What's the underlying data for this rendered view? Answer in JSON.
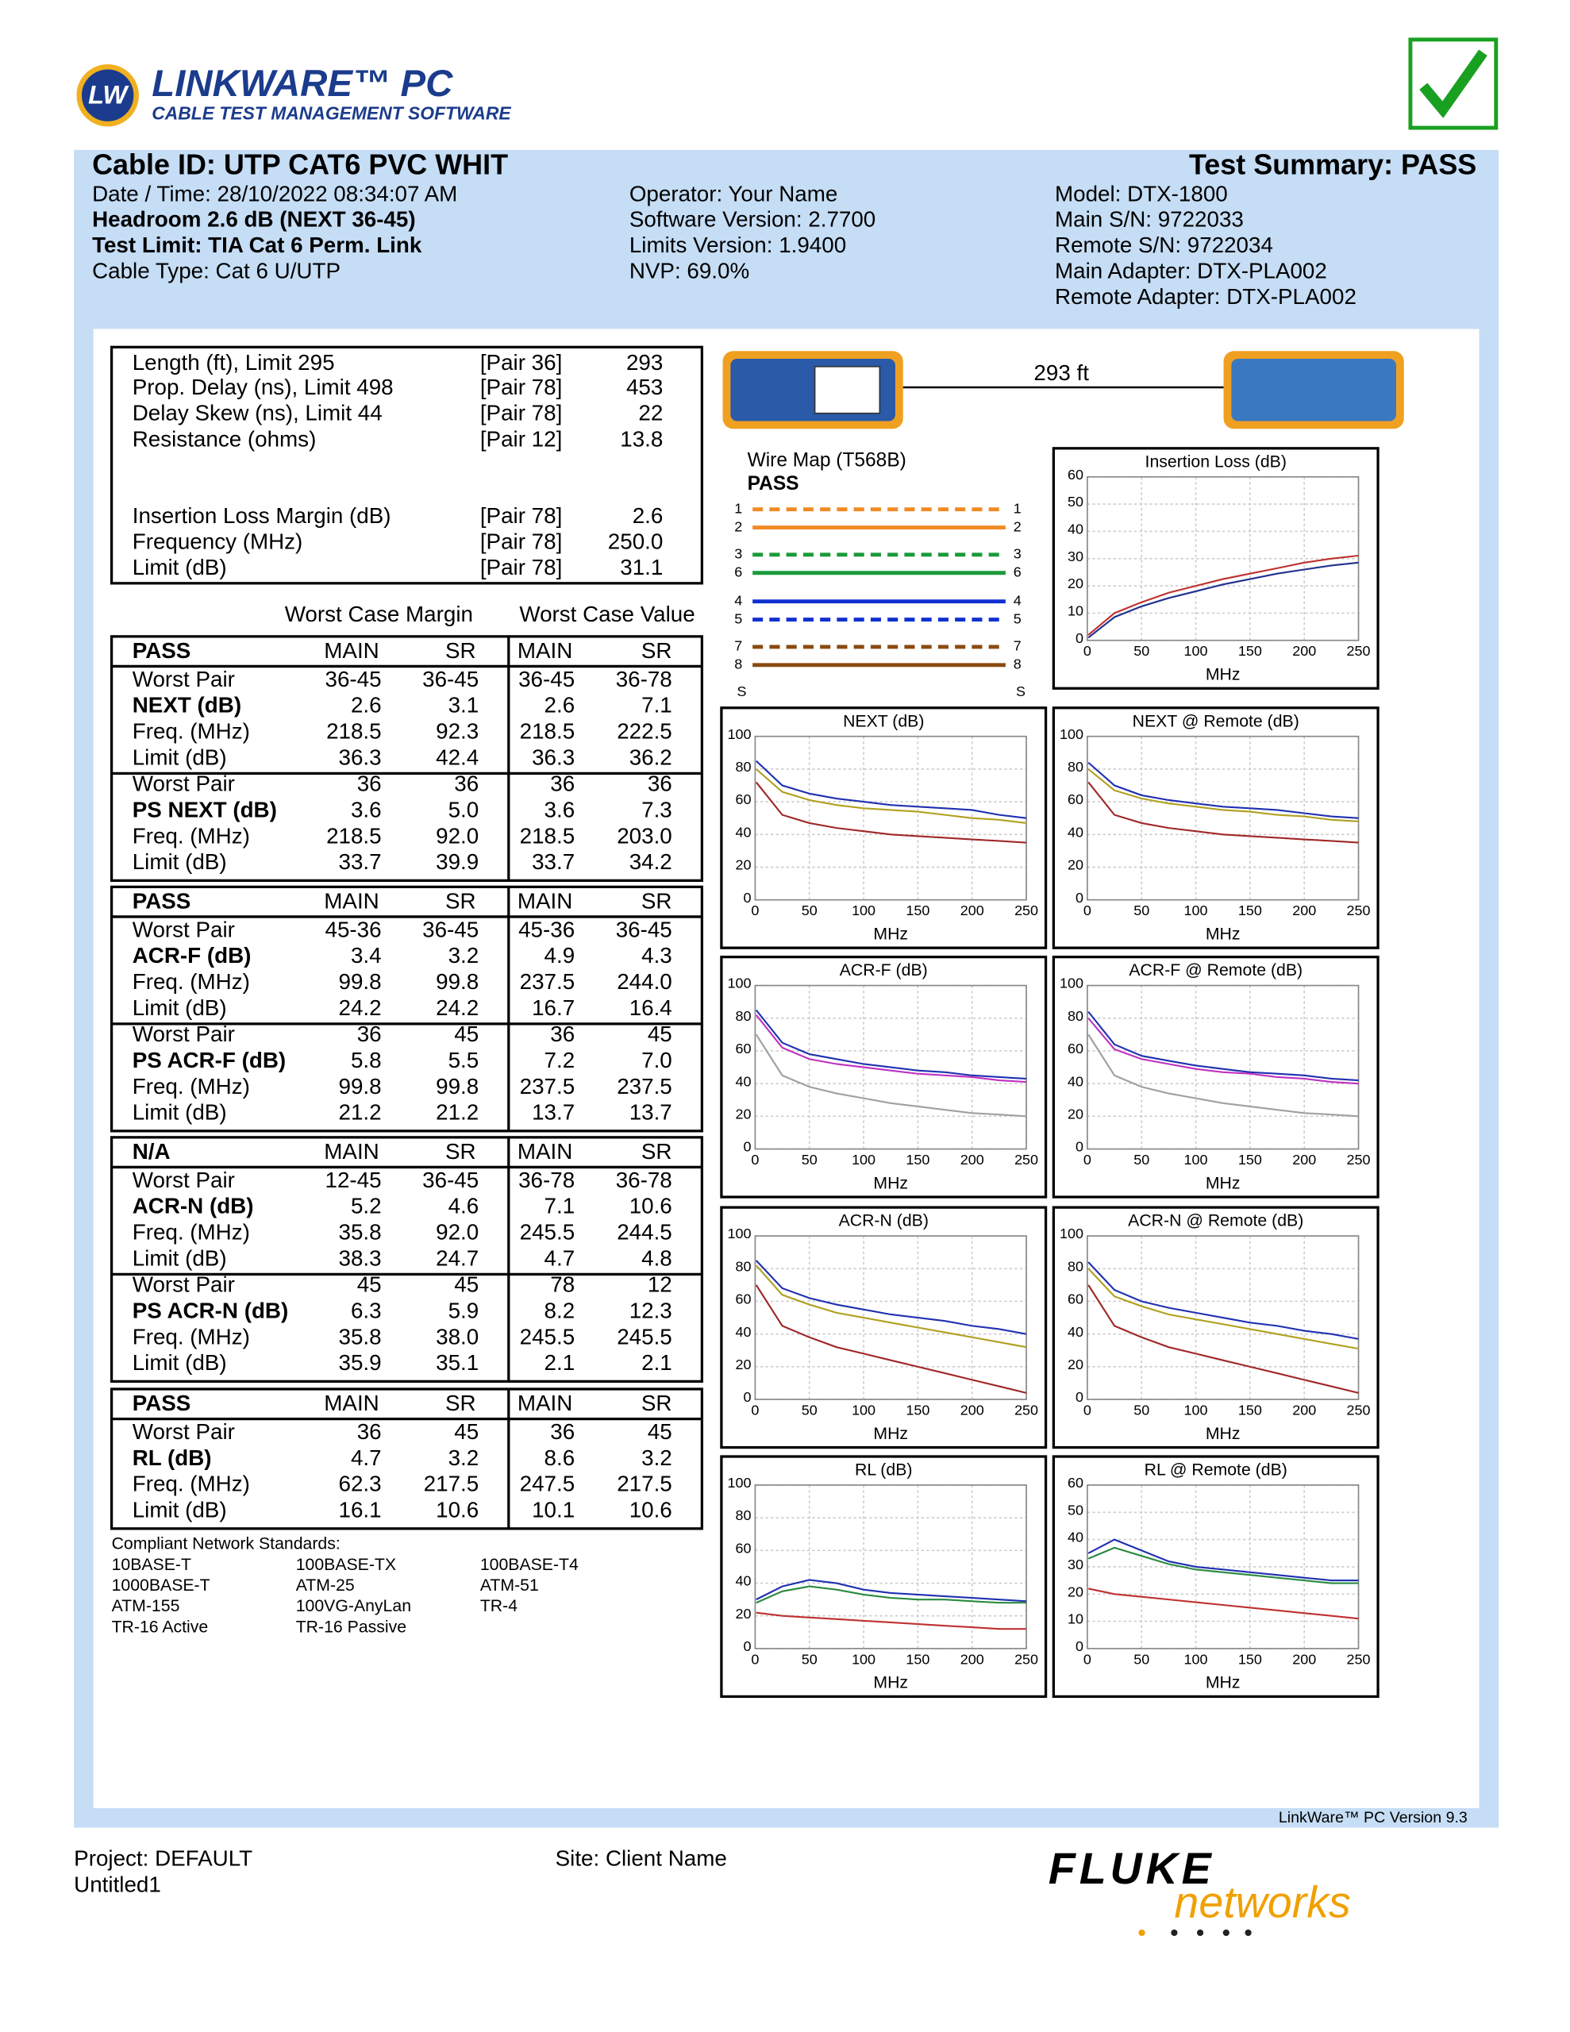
{
  "header": {
    "logo": "LW",
    "product": "LINKWARE™ PC",
    "tagline": "CABLE TEST MANAGEMENT SOFTWARE"
  },
  "summary": {
    "cable_id": "Cable ID: UTP CAT6  PVC  WHIT",
    "result": "Test Summary: PASS",
    "col1": [
      "Date / Time: 28/10/2022  08:34:07 AM",
      "Headroom 2.6 dB (NEXT 36-45)",
      "Test Limit: TIA Cat 6 Perm. Link",
      "Cable Type: Cat 6 U/UTP"
    ],
    "col2": [
      "Operator: Your Name",
      "Software Version: 2.7700",
      "Limits Version: 1.9400",
      "NVP: 69.0%"
    ],
    "col3": [
      "Model: DTX-1800",
      "Main S/N: 9722033",
      "Remote S/N: 9722034",
      "Main Adapter: DTX-PLA002",
      "Remote Adapter: DTX-PLA002"
    ]
  },
  "results": [
    [
      "Length (ft), Limit 295",
      "[Pair 36]",
      "293"
    ],
    [
      "Prop. Delay (ns), Limit 498",
      "[Pair 78]",
      "453"
    ],
    [
      "Delay Skew (ns), Limit 44",
      "[Pair 78]",
      "22"
    ],
    [
      "Resistance (ohms)",
      "[Pair 12]",
      "13.8"
    ],
    [
      "Insertion Loss Margin (dB)",
      "[Pair 78]",
      "2.6"
    ],
    [
      "Frequency (MHz)",
      "[Pair 78]",
      "250.0"
    ],
    [
      "Limit (dB)",
      "[Pair 78]",
      "31.1"
    ]
  ],
  "length_label": "293 ft",
  "wiremap": {
    "title": "Wire Map (T568B)",
    "result": "PASS",
    "shield": "S",
    "pins": [
      {
        "label": "1",
        "color": "#f08a24",
        "style": "dashed"
      },
      {
        "label": "2",
        "color": "#f08a24",
        "style": "solid"
      },
      {
        "label": "3",
        "color": "#1a9a3a",
        "style": "dashed"
      },
      {
        "label": "6",
        "color": "#1a9a3a",
        "style": "solid"
      },
      {
        "label": "4",
        "color": "#1030d0",
        "style": "solid"
      },
      {
        "label": "5",
        "color": "#1030d0",
        "style": "dashed"
      },
      {
        "label": "7",
        "color": "#8a4a10",
        "style": "dashed"
      },
      {
        "label": "8",
        "color": "#8a4a10",
        "style": "solid"
      }
    ]
  },
  "table_headings": [
    "Worst Case Margin",
    "Worst Case Value"
  ],
  "tables": [
    {
      "header": [
        "PASS",
        "MAIN",
        "SR",
        "MAIN",
        "SR"
      ],
      "rows": [
        [
          "Worst Pair",
          "36-45",
          "36-45",
          "36-45",
          "36-78"
        ],
        [
          "NEXT (dB)",
          "2.6",
          "3.1",
          "2.6",
          "7.1"
        ],
        [
          "Freq. (MHz)",
          "218.5",
          "92.3",
          "218.5",
          "222.5"
        ],
        [
          "Limit (dB)",
          "36.3",
          "42.4",
          "36.3",
          "36.2"
        ],
        [
          "Worst Pair",
          "36",
          "36",
          "36",
          "36"
        ],
        [
          "PS NEXT (dB)",
          "3.6",
          "5.0",
          "3.6",
          "7.3"
        ],
        [
          "Freq. (MHz)",
          "218.5",
          "92.0",
          "218.5",
          "203.0"
        ],
        [
          "Limit (dB)",
          "33.7",
          "39.9",
          "33.7",
          "34.2"
        ]
      ]
    },
    {
      "header": [
        "PASS",
        "MAIN",
        "SR",
        "MAIN",
        "SR"
      ],
      "rows": [
        [
          "Worst Pair",
          "45-36",
          "36-45",
          "45-36",
          "36-45"
        ],
        [
          "ACR-F (dB)",
          "3.4",
          "3.2",
          "4.9",
          "4.3"
        ],
        [
          "Freq. (MHz)",
          "99.8",
          "99.8",
          "237.5",
          "244.0"
        ],
        [
          "Limit (dB)",
          "24.2",
          "24.2",
          "16.7",
          "16.4"
        ],
        [
          "Worst Pair",
          "36",
          "45",
          "36",
          "45"
        ],
        [
          "PS ACR-F (dB)",
          "5.8",
          "5.5",
          "7.2",
          "7.0"
        ],
        [
          "Freq. (MHz)",
          "99.8",
          "99.8",
          "237.5",
          "237.5"
        ],
        [
          "Limit (dB)",
          "21.2",
          "21.2",
          "13.7",
          "13.7"
        ]
      ]
    },
    {
      "header": [
        "N/A",
        "MAIN",
        "SR",
        "MAIN",
        "SR"
      ],
      "rows": [
        [
          "Worst Pair",
          "12-45",
          "36-45",
          "36-78",
          "36-78"
        ],
        [
          "ACR-N (dB)",
          "5.2",
          "4.6",
          "7.1",
          "10.6"
        ],
        [
          "Freq. (MHz)",
          "35.8",
          "92.0",
          "245.5",
          "244.5"
        ],
        [
          "Limit (dB)",
          "38.3",
          "24.7",
          "4.7",
          "4.8"
        ],
        [
          "Worst Pair",
          "45",
          "45",
          "78",
          "12"
        ],
        [
          "PS ACR-N (dB)",
          "6.3",
          "5.9",
          "8.2",
          "12.3"
        ],
        [
          "Freq. (MHz)",
          "35.8",
          "38.0",
          "245.5",
          "245.5"
        ],
        [
          "Limit (dB)",
          "35.9",
          "35.1",
          "2.1",
          "2.1"
        ]
      ]
    },
    {
      "header": [
        "PASS",
        "MAIN",
        "SR",
        "MAIN",
        "SR"
      ],
      "rows": [
        [
          "Worst Pair",
          "36",
          "45",
          "36",
          "45"
        ],
        [
          "RL (dB)",
          "4.7",
          "3.2",
          "8.6",
          "3.2"
        ],
        [
          "Freq. (MHz)",
          "62.3",
          "217.5",
          "247.5",
          "217.5"
        ],
        [
          "Limit (dB)",
          "16.1",
          "10.6",
          "10.1",
          "10.6"
        ]
      ]
    }
  ],
  "standards": {
    "title": "Compliant Network Standards:",
    "items": [
      "10BASE-T",
      "100BASE-TX",
      "100BASE-T4",
      "1000BASE-T",
      "ATM-25",
      "ATM-51",
      "ATM-155",
      "100VG-AnyLan",
      "TR-4",
      "TR-16 Active",
      "TR-16 Passive"
    ]
  },
  "chart_data": [
    {
      "type": "line",
      "title": "Insertion Loss (dB)",
      "xlabel": "MHz",
      "x": [
        1,
        25,
        50,
        75,
        100,
        125,
        150,
        175,
        200,
        225,
        250
      ],
      "xlim": [
        0,
        250
      ],
      "xticks": [
        0,
        50,
        100,
        150,
        200,
        250
      ],
      "ylim": [
        0,
        60
      ],
      "yticks": [
        0,
        10,
        20,
        30,
        40,
        50,
        60
      ],
      "grid": true,
      "series": [
        {
          "color": "#c03030",
          "values": [
            2,
            10,
            14,
            17.5,
            20,
            22.5,
            24.5,
            26.5,
            28.5,
            30,
            31.1
          ]
        },
        {
          "color": "#203090",
          "values": [
            1,
            8.5,
            12.5,
            15.5,
            18,
            20.5,
            22.5,
            24.5,
            26,
            27.5,
            28.5
          ]
        }
      ]
    },
    {
      "type": "line",
      "title": "NEXT (dB)",
      "xlabel": "MHz",
      "x": [
        1,
        25,
        50,
        75,
        100,
        125,
        150,
        175,
        200,
        225,
        250
      ],
      "xlim": [
        0,
        250
      ],
      "xticks": [
        0,
        50,
        100,
        150,
        200,
        250
      ],
      "ylim": [
        0,
        100
      ],
      "yticks": [
        0,
        20,
        40,
        60,
        80,
        100
      ],
      "grid": true,
      "series": [
        {
          "color": "#a02828",
          "values": [
            72,
            52,
            47,
            44,
            42,
            40,
            39,
            38,
            37,
            36,
            35
          ]
        },
        {
          "color": "#2030b0",
          "values": [
            85,
            70,
            65,
            62,
            60,
            58,
            57,
            56,
            55,
            52,
            50
          ]
        },
        {
          "color": "#b0a020",
          "values": [
            80,
            66,
            61,
            58,
            56,
            55,
            54,
            52,
            50,
            49,
            47
          ]
        }
      ]
    },
    {
      "type": "line",
      "title": "NEXT @ Remote (dB)",
      "xlabel": "MHz",
      "x": [
        1,
        25,
        50,
        75,
        100,
        125,
        150,
        175,
        200,
        225,
        250
      ],
      "xlim": [
        0,
        250
      ],
      "xticks": [
        0,
        50,
        100,
        150,
        200,
        250
      ],
      "ylim": [
        0,
        100
      ],
      "yticks": [
        0,
        20,
        40,
        60,
        80,
        100
      ],
      "grid": true,
      "series": [
        {
          "color": "#a02828",
          "values": [
            72,
            52,
            47,
            44,
            42,
            40,
            39,
            38,
            37,
            36,
            35
          ]
        },
        {
          "color": "#2030b0",
          "values": [
            84,
            70,
            64,
            61,
            59,
            57,
            56,
            55,
            53,
            51,
            50
          ]
        },
        {
          "color": "#b0a020",
          "values": [
            80,
            67,
            62,
            59,
            57,
            55,
            54,
            52,
            51,
            49,
            48
          ]
        }
      ]
    },
    {
      "type": "line",
      "title": "ACR-F (dB)",
      "xlabel": "MHz",
      "x": [
        1,
        25,
        50,
        75,
        100,
        125,
        150,
        175,
        200,
        225,
        250
      ],
      "xlim": [
        0,
        250
      ],
      "xticks": [
        0,
        50,
        100,
        150,
        200,
        250
      ],
      "ylim": [
        0,
        100
      ],
      "yticks": [
        0,
        20,
        40,
        60,
        80,
        100
      ],
      "grid": true,
      "series": [
        {
          "color": "#a0a0a0",
          "values": [
            70,
            45,
            38,
            34,
            31,
            28,
            26,
            24,
            22,
            21,
            20
          ]
        },
        {
          "color": "#2030b0",
          "values": [
            85,
            65,
            58,
            55,
            52,
            50,
            48,
            47,
            45,
            44,
            43
          ]
        },
        {
          "color": "#c030c0",
          "values": [
            82,
            62,
            55,
            52,
            50,
            48,
            46,
            45,
            44,
            42,
            41
          ]
        }
      ]
    },
    {
      "type": "line",
      "title": "ACR-F @ Remote (dB)",
      "xlabel": "MHz",
      "x": [
        1,
        25,
        50,
        75,
        100,
        125,
        150,
        175,
        200,
        225,
        250
      ],
      "xlim": [
        0,
        250
      ],
      "xticks": [
        0,
        50,
        100,
        150,
        200,
        250
      ],
      "ylim": [
        0,
        100
      ],
      "yticks": [
        0,
        20,
        40,
        60,
        80,
        100
      ],
      "grid": true,
      "series": [
        {
          "color": "#a0a0a0",
          "values": [
            70,
            45,
            38,
            34,
            31,
            28,
            26,
            24,
            22,
            21,
            20
          ]
        },
        {
          "color": "#2030b0",
          "values": [
            84,
            64,
            57,
            54,
            51,
            49,
            47,
            46,
            45,
            43,
            42
          ]
        },
        {
          "color": "#c030c0",
          "values": [
            80,
            61,
            55,
            52,
            49,
            47,
            46,
            44,
            43,
            41,
            40
          ]
        }
      ]
    },
    {
      "type": "line",
      "title": "ACR-N (dB)",
      "xlabel": "MHz",
      "x": [
        1,
        25,
        50,
        75,
        100,
        125,
        150,
        175,
        200,
        225,
        250
      ],
      "xlim": [
        0,
        250
      ],
      "xticks": [
        0,
        50,
        100,
        150,
        200,
        250
      ],
      "ylim": [
        0,
        100
      ],
      "yticks": [
        0,
        20,
        40,
        60,
        80,
        100
      ],
      "grid": true,
      "series": [
        {
          "color": "#a02828",
          "values": [
            70,
            45,
            38,
            32,
            28,
            24,
            20,
            16,
            12,
            8,
            4
          ]
        },
        {
          "color": "#2030b0",
          "values": [
            85,
            68,
            62,
            58,
            55,
            52,
            50,
            48,
            45,
            43,
            40
          ]
        },
        {
          "color": "#b0a020",
          "values": [
            82,
            64,
            58,
            53,
            50,
            47,
            44,
            41,
            38,
            35,
            32
          ]
        }
      ]
    },
    {
      "type": "line",
      "title": "ACR-N @ Remote (dB)",
      "xlabel": "MHz",
      "x": [
        1,
        25,
        50,
        75,
        100,
        125,
        150,
        175,
        200,
        225,
        250
      ],
      "xlim": [
        0,
        250
      ],
      "xticks": [
        0,
        50,
        100,
        150,
        200,
        250
      ],
      "ylim": [
        0,
        100
      ],
      "yticks": [
        0,
        20,
        40,
        60,
        80,
        100
      ],
      "grid": true,
      "series": [
        {
          "color": "#a02828",
          "values": [
            70,
            45,
            38,
            32,
            28,
            24,
            20,
            16,
            12,
            8,
            4
          ]
        },
        {
          "color": "#2030b0",
          "values": [
            84,
            67,
            60,
            56,
            53,
            50,
            47,
            45,
            42,
            40,
            37
          ]
        },
        {
          "color": "#b0a020",
          "values": [
            80,
            63,
            57,
            52,
            49,
            46,
            43,
            40,
            37,
            34,
            31
          ]
        }
      ]
    },
    {
      "type": "line",
      "title": "RL (dB)",
      "xlabel": "MHz",
      "x": [
        1,
        25,
        50,
        75,
        100,
        125,
        150,
        175,
        200,
        225,
        250
      ],
      "xlim": [
        0,
        250
      ],
      "xticks": [
        0,
        50,
        100,
        150,
        200,
        250
      ],
      "ylim": [
        0,
        100
      ],
      "yticks": [
        0,
        20,
        40,
        60,
        80,
        100
      ],
      "grid": true,
      "series": [
        {
          "color": "#c03030",
          "values": [
            22,
            20,
            19,
            18,
            17,
            16,
            15,
            14,
            13,
            12,
            12
          ]
        },
        {
          "color": "#2030b0",
          "values": [
            30,
            38,
            42,
            40,
            36,
            34,
            33,
            32,
            31,
            30,
            29
          ]
        },
        {
          "color": "#2a8a40",
          "values": [
            28,
            35,
            38,
            36,
            33,
            31,
            30,
            30,
            29,
            28,
            28
          ]
        }
      ]
    },
    {
      "type": "line",
      "title": "RL @ Remote (dB)",
      "xlabel": "MHz",
      "x": [
        1,
        25,
        50,
        75,
        100,
        125,
        150,
        175,
        200,
        225,
        250
      ],
      "xlim": [
        0,
        250
      ],
      "xticks": [
        0,
        50,
        100,
        150,
        200,
        250
      ],
      "ylim": [
        0,
        60
      ],
      "yticks": [
        0,
        10,
        20,
        30,
        40,
        50,
        60
      ],
      "grid": true,
      "series": [
        {
          "color": "#c03030",
          "values": [
            22,
            20,
            19,
            18,
            17,
            16,
            15,
            14,
            13,
            12,
            11
          ]
        },
        {
          "color": "#2030b0",
          "values": [
            35,
            40,
            36,
            32,
            30,
            29,
            28,
            27,
            26,
            25,
            25
          ]
        },
        {
          "color": "#2a8a40",
          "values": [
            33,
            37,
            34,
            31,
            29,
            28,
            27,
            26,
            25,
            24,
            24
          ]
        }
      ]
    }
  ],
  "footer": {
    "version": "LinkWare™ PC Version 9.3",
    "project": "Project: DEFAULT",
    "file": "Untitled1",
    "site": "Site: Client Name",
    "brand": "FLUKE",
    "brand2": "networks"
  }
}
